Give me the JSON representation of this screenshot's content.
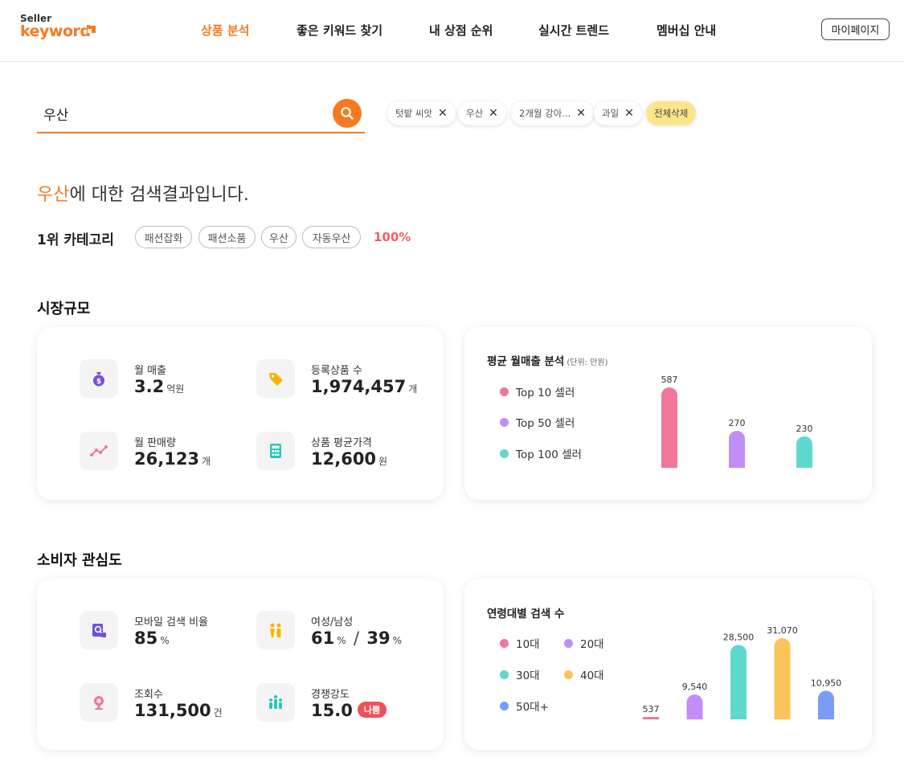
{
  "header": {
    "logo_small": "Seller",
    "logo_main": "keyword",
    "nav": [
      {
        "label": "상품 분석",
        "active": true
      },
      {
        "label": "좋은 키워드 찾기",
        "active": false
      },
      {
        "label": "내 상점 순위",
        "active": false
      },
      {
        "label": "실시간 트렌드",
        "active": false
      },
      {
        "label": "멤버십 안내",
        "active": false
      }
    ],
    "mypage_label": "마이페이지"
  },
  "search": {
    "value": "우산",
    "recent": [
      "텃밭 씨앗",
      "우산",
      "2개월 강아...",
      "과일"
    ],
    "clear_all_label": "전체삭제"
  },
  "result": {
    "keyword": "우산",
    "suffix": "에 대한 검색결과입니다.",
    "category_label": "1위 카테고리",
    "categories": [
      "패션잡화",
      "패션소품",
      "우산",
      "자동우산"
    ],
    "category_percent": "100%"
  },
  "market": {
    "title": "시장규모",
    "metrics": [
      {
        "label": "월 매출",
        "value": "3.2",
        "unit": "억원",
        "icon": "money-bag-icon"
      },
      {
        "label": "등록상품 수",
        "value": "1,974,457",
        "unit": "개",
        "icon": "price-tag-icon"
      },
      {
        "label": "월 판매량",
        "value": "26,123",
        "unit": "개",
        "icon": "trend-line-icon"
      },
      {
        "label": "상품 평균가격",
        "value": "12,600",
        "unit": "원",
        "icon": "calculator-icon"
      }
    ]
  },
  "consumer": {
    "title": "소비자 관심도",
    "metrics": [
      {
        "label": "모바일 검색 비율",
        "value": "85",
        "unit": "%",
        "icon": "mobile-search-icon"
      },
      {
        "label": "여성/남성",
        "value_female": "61",
        "value_male": "39",
        "unit": "%",
        "separator": "/",
        "icon": "gender-icon"
      },
      {
        "label": "조회수",
        "value": "131,500",
        "unit": "건",
        "icon": "view-pin-icon"
      },
      {
        "label": "경쟁강도",
        "value": "15.0",
        "badge": "나쁨",
        "icon": "competition-icon"
      }
    ]
  },
  "chart_data": [
    {
      "type": "bar",
      "title": "평균 월매출 분석",
      "subtitle": "(단위: 만원)",
      "categories": [
        "Top 10 셀러",
        "Top 50 셀러",
        "Top 100 셀러"
      ],
      "values": [
        587,
        270,
        230
      ],
      "colors": [
        "#f2769a",
        "#c28ef5",
        "#5fd8cf"
      ],
      "value_labels": [
        "587",
        "270",
        "230"
      ],
      "legend_position": "left",
      "grid": false
    },
    {
      "type": "bar",
      "title": "연령대별 검색 수",
      "categories": [
        "10대",
        "20대",
        "30대",
        "40대",
        "50대+"
      ],
      "values": [
        537,
        9540,
        28500,
        31070,
        10950
      ],
      "colors": [
        "#f2769a",
        "#c28ef5",
        "#5fd8cf",
        "#fbc45a",
        "#7b9cf5"
      ],
      "value_labels": [
        "537",
        "9,540",
        "28,500",
        "31,070",
        "10,950"
      ],
      "legend_position": "left",
      "grid": false
    }
  ]
}
